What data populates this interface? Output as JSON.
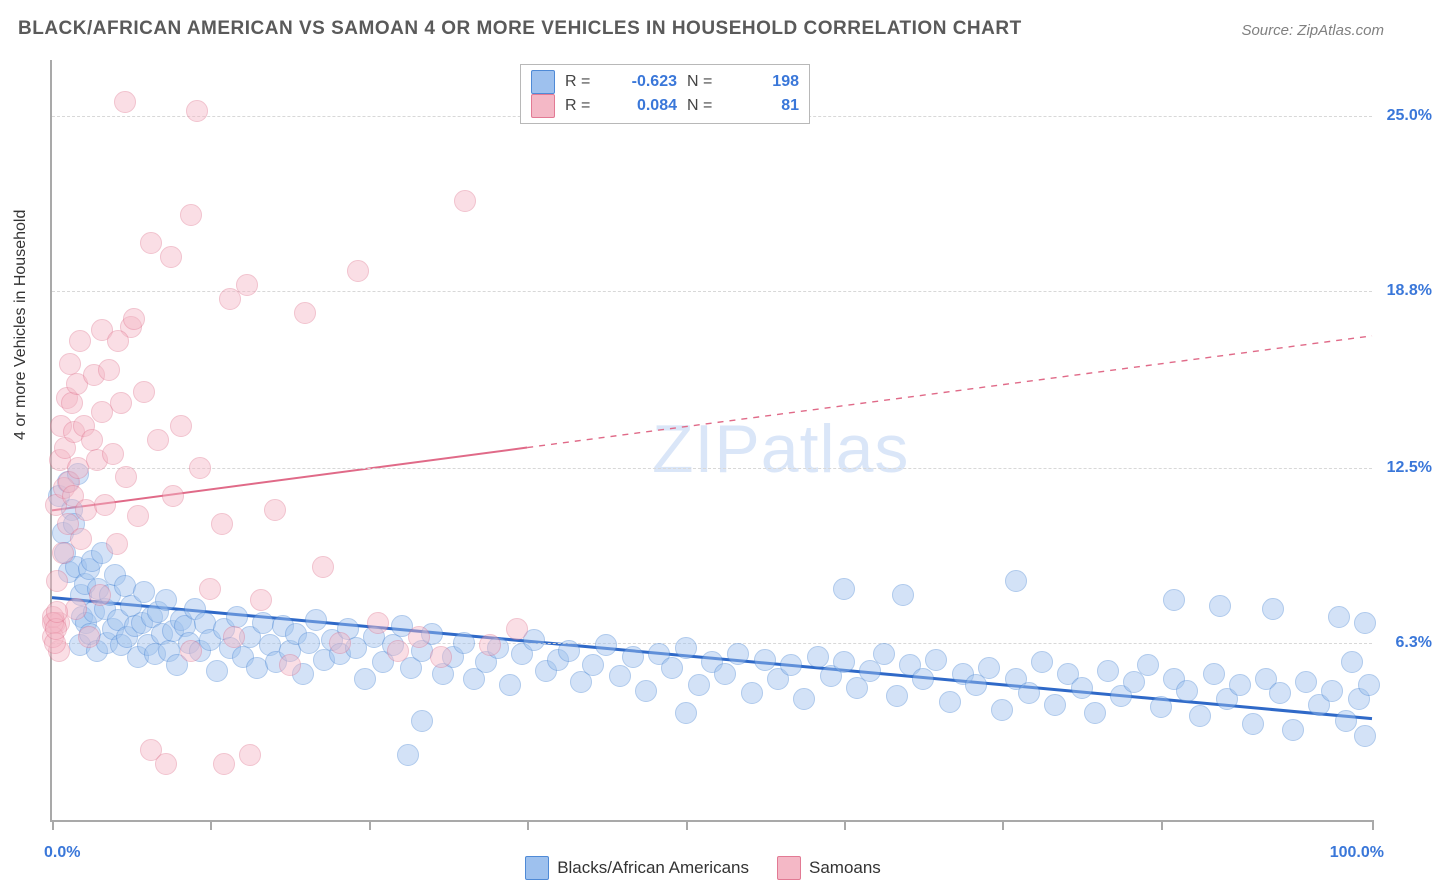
{
  "title": "BLACK/AFRICAN AMERICAN VS SAMOAN 4 OR MORE VEHICLES IN HOUSEHOLD CORRELATION CHART",
  "source": "Source: ZipAtlas.com",
  "watermark": "ZIPatlas",
  "ylabel": "4 or more Vehicles in Household",
  "chart": {
    "type": "scatter",
    "background_color": "#ffffff",
    "grid_color": "#d8d8d8",
    "axis_color": "#a9a9a9",
    "xlim": [
      0,
      100
    ],
    "ylim": [
      0,
      27
    ],
    "xtick_positions": [
      0,
      12,
      24,
      36,
      48,
      60,
      72,
      84,
      100
    ],
    "x_lo_label": "0.0%",
    "x_hi_label": "100.0%",
    "y_gridlines": [
      6.3,
      12.5,
      18.8,
      25.0
    ],
    "y_tick_labels": [
      "6.3%",
      "12.5%",
      "18.8%",
      "25.0%"
    ],
    "tick_label_color": "#3a77d9",
    "tick_label_fontsize": 16,
    "marker_radius": 10,
    "marker_opacity": 0.45,
    "title_fontsize": 19,
    "title_color": "#5a5a5a",
    "series": [
      {
        "name": "Blacks/African Americans",
        "legend_key": "blacks",
        "color_fill": "#9ec1ee",
        "color_stroke": "#4f8ad6",
        "R": "-0.623",
        "N": "198",
        "trend": {
          "x1": 0,
          "y1": 7.9,
          "x2": 100,
          "y2": 3.6,
          "solid_until_x": 100,
          "line_width": 3,
          "line_color": "#2f69c8"
        },
        "points": [
          [
            0.5,
            11.5
          ],
          [
            0.8,
            10.2
          ],
          [
            1.0,
            9.5
          ],
          [
            1.2,
            12.0
          ],
          [
            1.3,
            8.8
          ],
          [
            1.5,
            11.0
          ],
          [
            1.7,
            10.5
          ],
          [
            1.8,
            9.0
          ],
          [
            2.0,
            12.3
          ],
          [
            2.1,
            6.2
          ],
          [
            2.2,
            8.0
          ],
          [
            2.3,
            7.2
          ],
          [
            2.5,
            8.4
          ],
          [
            2.6,
            7.0
          ],
          [
            2.8,
            8.9
          ],
          [
            2.9,
            6.6
          ],
          [
            3.0,
            9.2
          ],
          [
            3.2,
            7.4
          ],
          [
            3.4,
            6.0
          ],
          [
            3.5,
            8.2
          ],
          [
            3.8,
            9.5
          ],
          [
            4.0,
            7.5
          ],
          [
            4.2,
            6.3
          ],
          [
            4.4,
            8.0
          ],
          [
            4.6,
            6.8
          ],
          [
            4.8,
            8.7
          ],
          [
            5.0,
            7.1
          ],
          [
            5.2,
            6.2
          ],
          [
            5.5,
            8.3
          ],
          [
            5.7,
            6.5
          ],
          [
            6.0,
            7.6
          ],
          [
            6.3,
            6.9
          ],
          [
            6.5,
            5.8
          ],
          [
            6.8,
            7.0
          ],
          [
            7.0,
            8.1
          ],
          [
            7.3,
            6.2
          ],
          [
            7.6,
            7.2
          ],
          [
            7.8,
            5.9
          ],
          [
            8.0,
            7.4
          ],
          [
            8.3,
            6.6
          ],
          [
            8.6,
            7.8
          ],
          [
            8.9,
            6.0
          ],
          [
            9.2,
            6.7
          ],
          [
            9.5,
            5.5
          ],
          [
            9.8,
            7.1
          ],
          [
            10.1,
            6.9
          ],
          [
            10.4,
            6.3
          ],
          [
            10.8,
            7.5
          ],
          [
            11.2,
            6.0
          ],
          [
            11.6,
            7.0
          ],
          [
            12.0,
            6.4
          ],
          [
            12.5,
            5.3
          ],
          [
            13.0,
            6.8
          ],
          [
            13.5,
            6.1
          ],
          [
            14.0,
            7.2
          ],
          [
            14.5,
            5.8
          ],
          [
            15.0,
            6.5
          ],
          [
            15.5,
            5.4
          ],
          [
            16.0,
            7.0
          ],
          [
            16.5,
            6.2
          ],
          [
            17.0,
            5.6
          ],
          [
            17.5,
            6.9
          ],
          [
            18.0,
            6.0
          ],
          [
            18.5,
            6.6
          ],
          [
            19.0,
            5.2
          ],
          [
            19.5,
            6.3
          ],
          [
            20.0,
            7.1
          ],
          [
            20.6,
            5.7
          ],
          [
            21.2,
            6.4
          ],
          [
            21.8,
            5.9
          ],
          [
            22.4,
            6.8
          ],
          [
            23.0,
            6.1
          ],
          [
            23.7,
            5.0
          ],
          [
            24.4,
            6.5
          ],
          [
            25.1,
            5.6
          ],
          [
            25.8,
            6.2
          ],
          [
            26.5,
            6.9
          ],
          [
            27.2,
            5.4
          ],
          [
            28.0,
            6.0
          ],
          [
            28.8,
            6.6
          ],
          [
            29.6,
            5.2
          ],
          [
            28.0,
            3.5
          ],
          [
            30.4,
            5.8
          ],
          [
            31.2,
            6.3
          ],
          [
            32.0,
            5.0
          ],
          [
            32.9,
            5.6
          ],
          [
            33.8,
            6.1
          ],
          [
            34.7,
            4.8
          ],
          [
            35.6,
            5.9
          ],
          [
            36.5,
            6.4
          ],
          [
            37.4,
            5.3
          ],
          [
            38.3,
            5.7
          ],
          [
            39.2,
            6.0
          ],
          [
            40.1,
            4.9
          ],
          [
            41.0,
            5.5
          ],
          [
            42.0,
            6.2
          ],
          [
            43.0,
            5.1
          ],
          [
            44.0,
            5.8
          ],
          [
            45.0,
            4.6
          ],
          [
            46.0,
            5.9
          ],
          [
            47.0,
            5.4
          ],
          [
            48.0,
            6.1
          ],
          [
            49.0,
            4.8
          ],
          [
            50.0,
            5.6
          ],
          [
            51.0,
            5.2
          ],
          [
            52.0,
            5.9
          ],
          [
            53.0,
            4.5
          ],
          [
            54.0,
            5.7
          ],
          [
            55.0,
            5.0
          ],
          [
            56.0,
            5.5
          ],
          [
            57.0,
            4.3
          ],
          [
            58.0,
            5.8
          ],
          [
            48.0,
            3.8
          ],
          [
            59.0,
            5.1
          ],
          [
            60.0,
            5.6
          ],
          [
            61.0,
            4.7
          ],
          [
            62.0,
            5.3
          ],
          [
            63.0,
            5.9
          ],
          [
            64.0,
            4.4
          ],
          [
            65.0,
            5.5
          ],
          [
            66.0,
            5.0
          ],
          [
            67.0,
            5.7
          ],
          [
            68.0,
            4.2
          ],
          [
            69.0,
            5.2
          ],
          [
            70.0,
            4.8
          ],
          [
            71.0,
            5.4
          ],
          [
            72.0,
            3.9
          ],
          [
            73.0,
            5.0
          ],
          [
            74.0,
            4.5
          ],
          [
            75.0,
            5.6
          ],
          [
            76.0,
            4.1
          ],
          [
            77.0,
            5.2
          ],
          [
            78.0,
            4.7
          ],
          [
            79.0,
            3.8
          ],
          [
            80.0,
            5.3
          ],
          [
            81.0,
            4.4
          ],
          [
            82.0,
            4.9
          ],
          [
            83.0,
            5.5
          ],
          [
            73.0,
            8.5
          ],
          [
            84.0,
            4.0
          ],
          [
            85.0,
            5.0
          ],
          [
            86.0,
            4.6
          ],
          [
            87.0,
            3.7
          ],
          [
            88.0,
            5.2
          ],
          [
            89.0,
            4.3
          ],
          [
            90.0,
            4.8
          ],
          [
            91.0,
            3.4
          ],
          [
            92.0,
            5.0
          ],
          [
            85.0,
            7.8
          ],
          [
            92.5,
            7.5
          ],
          [
            93.0,
            4.5
          ],
          [
            94.0,
            3.2
          ],
          [
            95.0,
            4.9
          ],
          [
            96.0,
            4.1
          ],
          [
            97.0,
            4.6
          ],
          [
            97.5,
            7.2
          ],
          [
            98.0,
            3.5
          ],
          [
            98.5,
            5.6
          ],
          [
            99.0,
            4.3
          ],
          [
            99.5,
            3.0
          ],
          [
            99.5,
            7.0
          ],
          [
            99.8,
            4.8
          ],
          [
            27.0,
            2.3
          ],
          [
            60.0,
            8.2
          ],
          [
            64.5,
            8.0
          ],
          [
            88.5,
            7.6
          ]
        ]
      },
      {
        "name": "Samoans",
        "legend_key": "samoans",
        "color_fill": "#f4b8c6",
        "color_stroke": "#e27a94",
        "R": "0.084",
        "N": "81",
        "trend": {
          "x1": 0,
          "y1": 11.0,
          "x2": 100,
          "y2": 17.2,
          "solid_until_x": 36,
          "line_width": 2,
          "line_color": "#e06a88"
        },
        "points": [
          [
            0.2,
            7.0
          ],
          [
            0.3,
            11.2
          ],
          [
            0.4,
            8.5
          ],
          [
            0.5,
            6.0
          ],
          [
            0.6,
            12.8
          ],
          [
            0.7,
            14.0
          ],
          [
            0.8,
            9.5
          ],
          [
            0.9,
            11.8
          ],
          [
            1.0,
            13.2
          ],
          [
            1.1,
            15.0
          ],
          [
            1.2,
            10.5
          ],
          [
            1.3,
            12.0
          ],
          [
            1.4,
            16.2
          ],
          [
            1.5,
            14.8
          ],
          [
            1.6,
            11.5
          ],
          [
            1.7,
            13.8
          ],
          [
            1.8,
            7.5
          ],
          [
            1.9,
            15.5
          ],
          [
            2.0,
            12.5
          ],
          [
            2.1,
            17.0
          ],
          [
            2.2,
            10.0
          ],
          [
            2.4,
            14.0
          ],
          [
            2.6,
            11.0
          ],
          [
            2.8,
            6.5
          ],
          [
            3.0,
            13.5
          ],
          [
            3.2,
            15.8
          ],
          [
            3.4,
            12.8
          ],
          [
            3.6,
            8.0
          ],
          [
            3.8,
            14.5
          ],
          [
            4.0,
            11.2
          ],
          [
            4.3,
            16.0
          ],
          [
            4.6,
            13.0
          ],
          [
            4.9,
            9.8
          ],
          [
            5.2,
            14.8
          ],
          [
            5.6,
            12.2
          ],
          [
            6.0,
            17.5
          ],
          [
            6.5,
            10.8
          ],
          [
            7.0,
            15.2
          ],
          [
            0.5,
            7.0
          ],
          [
            7.5,
            2.5
          ],
          [
            8.0,
            13.5
          ],
          [
            8.6,
            2.0
          ],
          [
            9.2,
            11.5
          ],
          [
            9.8,
            14.0
          ],
          [
            10.5,
            6.0
          ],
          [
            11.2,
            12.5
          ],
          [
            12.0,
            8.2
          ],
          [
            12.9,
            10.5
          ],
          [
            13.8,
            6.5
          ],
          [
            14.8,
            19.0
          ],
          [
            15.8,
            7.8
          ],
          [
            16.9,
            11.0
          ],
          [
            18.0,
            5.5
          ],
          [
            13.0,
            2.0
          ],
          [
            19.2,
            18.0
          ],
          [
            20.5,
            9.0
          ],
          [
            21.8,
            6.3
          ],
          [
            23.2,
            19.5
          ],
          [
            24.7,
            7.0
          ],
          [
            15.0,
            2.3
          ],
          [
            26.2,
            6.0
          ],
          [
            5.5,
            25.5
          ],
          [
            27.8,
            6.5
          ],
          [
            7.5,
            20.5
          ],
          [
            9.0,
            20.0
          ],
          [
            10.5,
            21.5
          ],
          [
            29.5,
            5.8
          ],
          [
            3.8,
            17.4
          ],
          [
            5.0,
            17.0
          ],
          [
            6.2,
            17.8
          ],
          [
            31.3,
            22.0
          ],
          [
            33.2,
            6.2
          ],
          [
            35.2,
            6.8
          ],
          [
            11.0,
            25.2
          ],
          [
            13.5,
            18.5
          ],
          [
            0.1,
            6.5
          ],
          [
            0.1,
            7.2
          ],
          [
            0.1,
            7.0
          ],
          [
            0.2,
            6.3
          ],
          [
            0.3,
            6.8
          ],
          [
            0.4,
            7.4
          ]
        ]
      }
    ]
  },
  "legend_bottom": {
    "items": [
      {
        "label": "Blacks/African Americans",
        "fill": "#9ec1ee",
        "stroke": "#4f8ad6"
      },
      {
        "label": "Samoans",
        "fill": "#f4b8c6",
        "stroke": "#e27a94"
      }
    ]
  }
}
